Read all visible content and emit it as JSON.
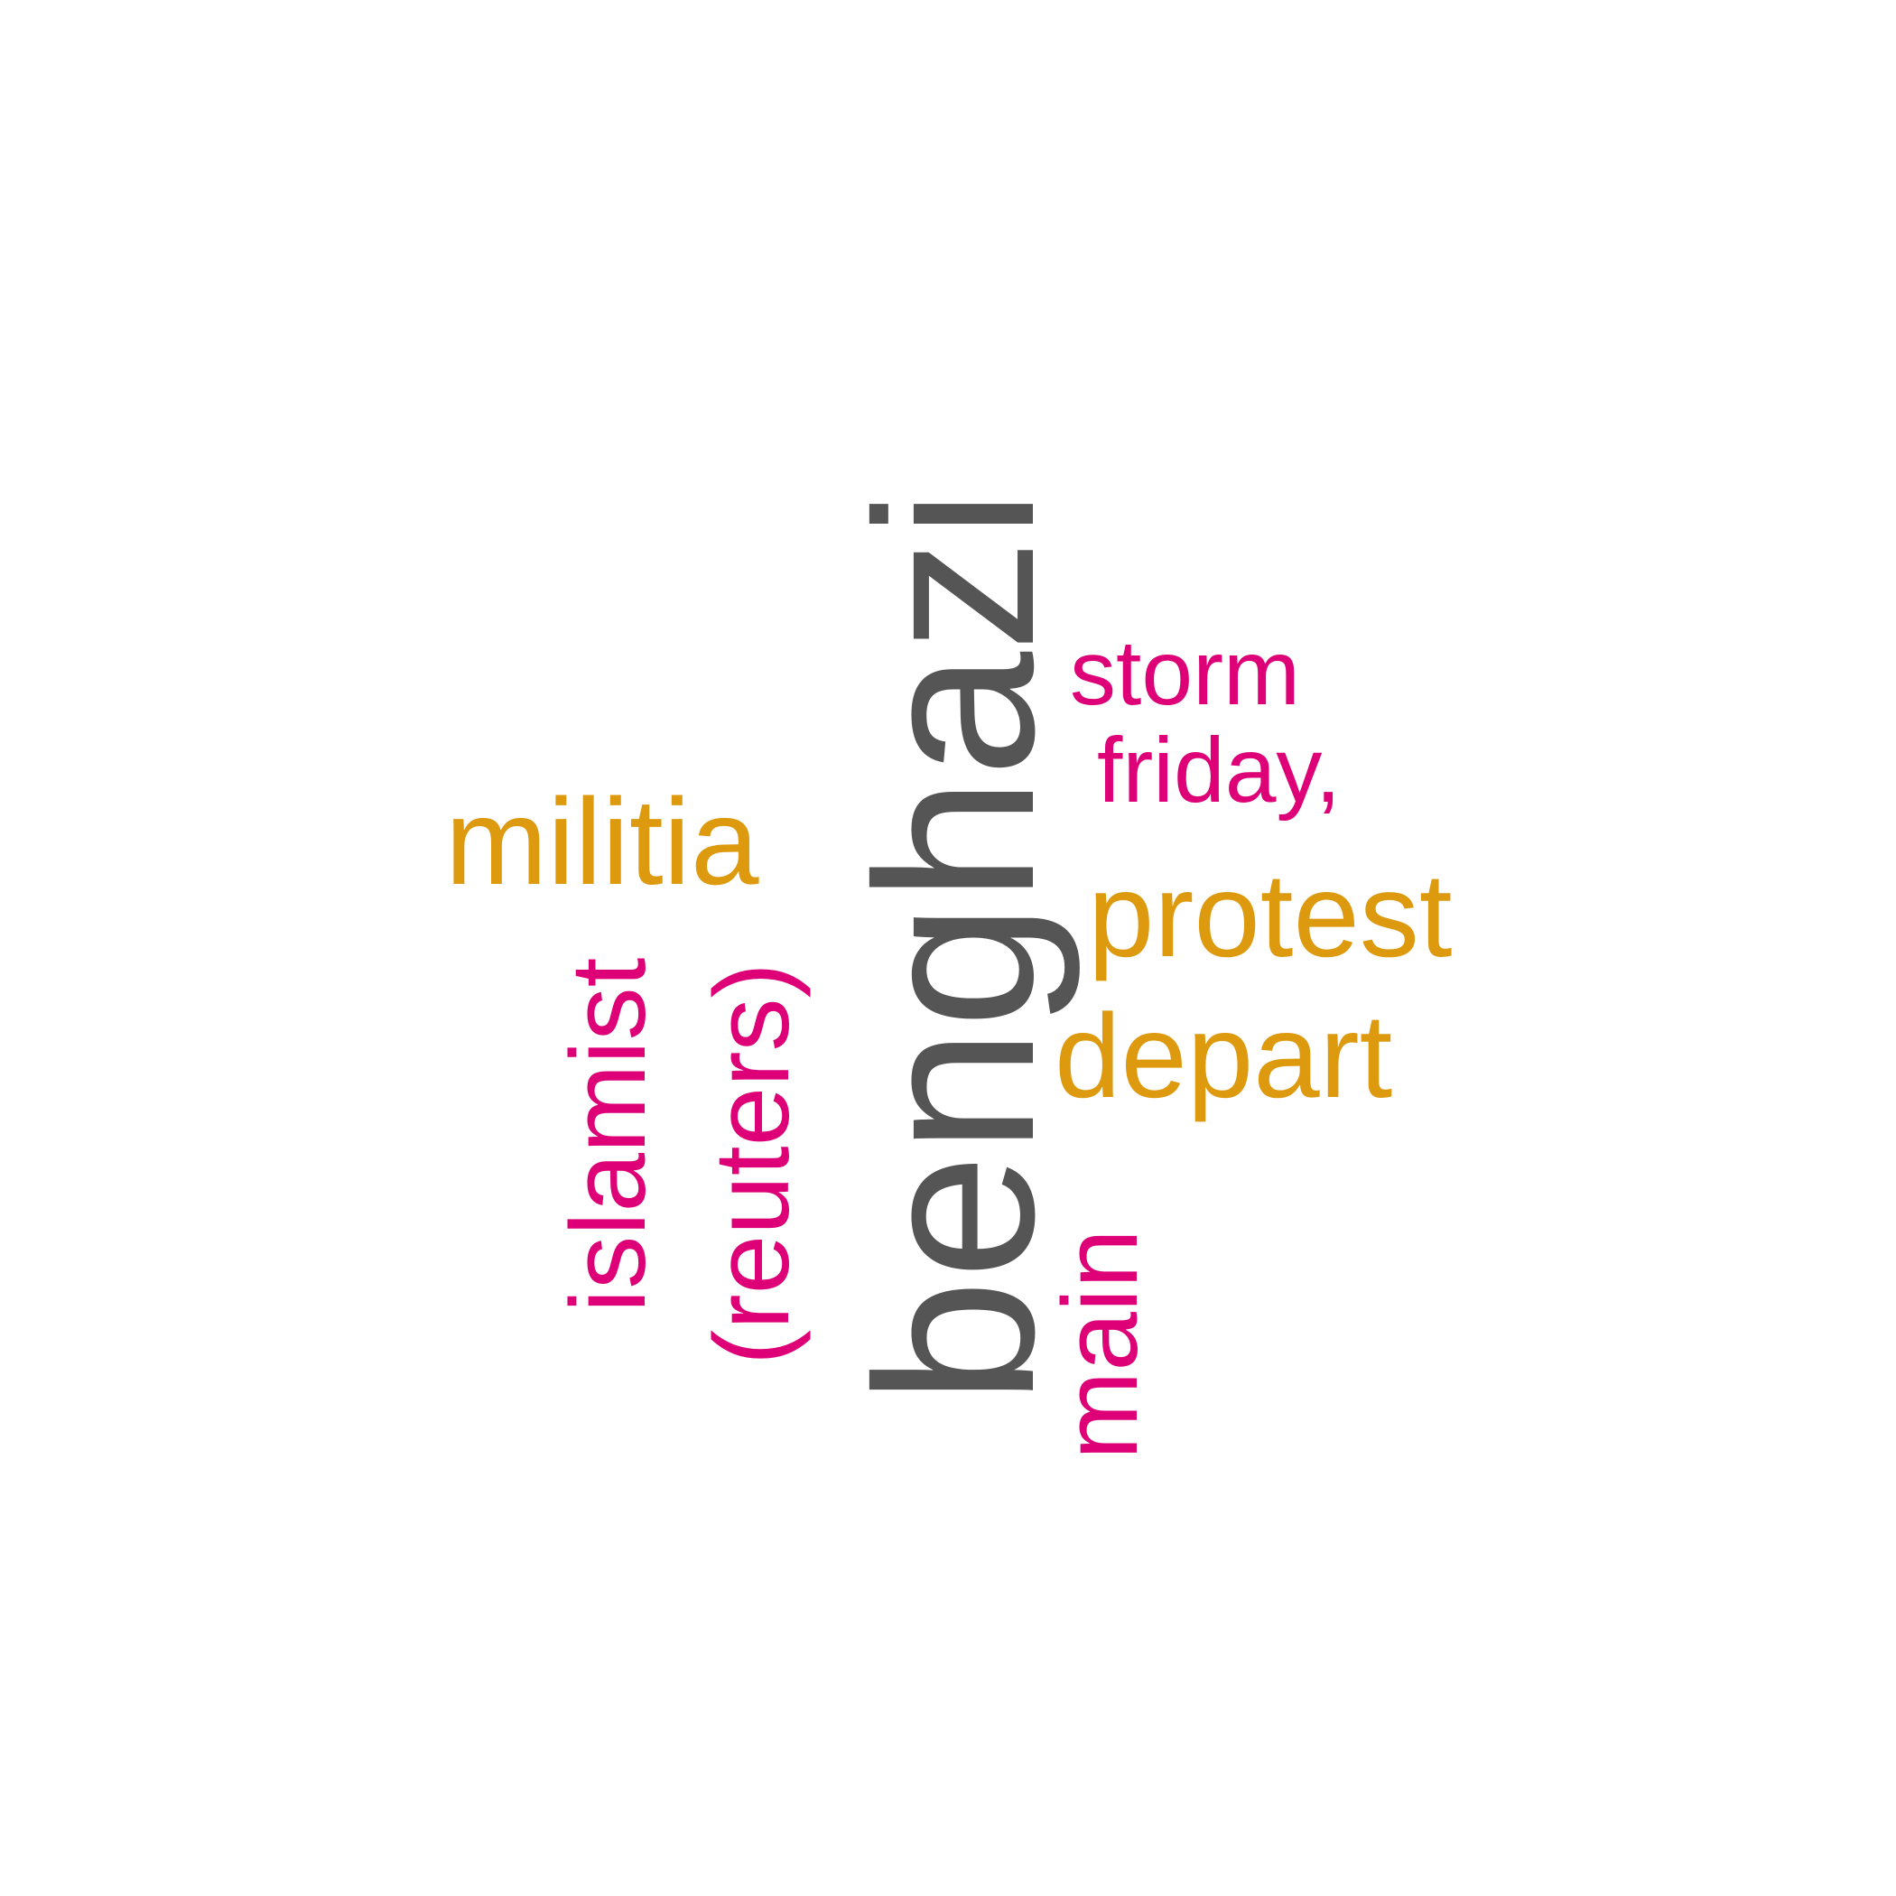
{
  "palette": {
    "dark": "#555555",
    "magenta": "#dd0077",
    "gold": "#dd9a0f",
    "background": "#ffffff"
  },
  "words": {
    "benghazi": {
      "text": "benghazi",
      "color": "#555555",
      "orientation": "vertical"
    },
    "militia": {
      "text": "militia",
      "color": "#dd9a0f",
      "orientation": "horizontal"
    },
    "islamist": {
      "text": "islamist",
      "color": "#dd0077",
      "orientation": "vertical"
    },
    "reuters": {
      "text": "(reuters)",
      "color": "#dd0077",
      "orientation": "vertical"
    },
    "main": {
      "text": "main",
      "color": "#dd0077",
      "orientation": "vertical"
    },
    "storm": {
      "text": "storm",
      "color": "#dd0077",
      "orientation": "horizontal"
    },
    "friday": {
      "text": "friday,",
      "color": "#dd0077",
      "orientation": "horizontal"
    },
    "protest": {
      "text": "protest",
      "color": "#dd9a0f",
      "orientation": "horizontal"
    },
    "depart": {
      "text": "depart",
      "color": "#dd9a0f",
      "orientation": "horizontal"
    }
  }
}
